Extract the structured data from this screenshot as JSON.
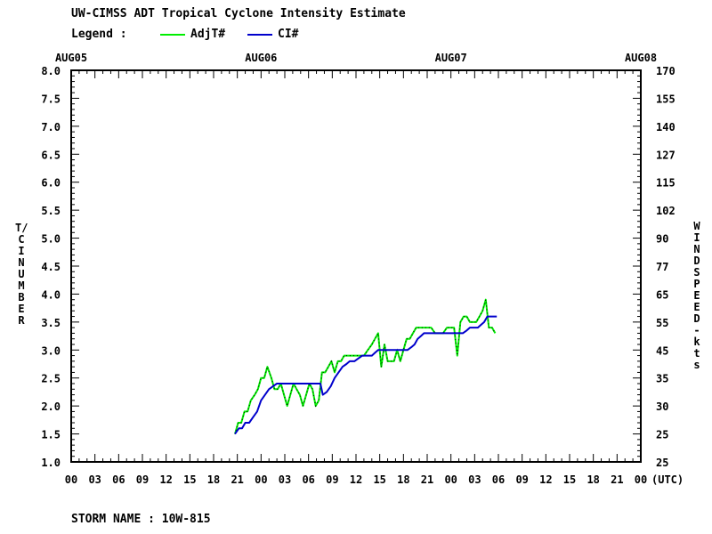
{
  "title": "UW-CIMSS ADT Tropical Cyclone Intensity Estimate",
  "legend": {
    "label": "Legend :",
    "items": [
      {
        "name": "AdjT#",
        "color": "#00ee00"
      },
      {
        "name": "CI#",
        "color": "#0000cc"
      }
    ]
  },
  "storm_label": "STORM NAME : 10W-815",
  "chart_data": {
    "type": "line",
    "xlabel": "(UTC)",
    "ylabel_left": "T/CI NUMBER",
    "ylabel_right": "WIND SPEED-kts",
    "date_labels": [
      "AUG05",
      "AUG06",
      "AUG07",
      "AUG08"
    ],
    "x_tick_labels": [
      "00",
      "03",
      "06",
      "09",
      "12",
      "15",
      "18",
      "21",
      "00",
      "03",
      "06",
      "09",
      "12",
      "15",
      "18",
      "21",
      "00",
      "03",
      "06",
      "09",
      "12",
      "15",
      "18",
      "21",
      "00"
    ],
    "y_left_ticks": [
      "1.0",
      "1.5",
      "2.0",
      "2.5",
      "3.0",
      "3.5",
      "4.0",
      "4.5",
      "5.0",
      "5.5",
      "6.0",
      "6.5",
      "7.0",
      "7.5",
      "8.0"
    ],
    "y_right_ticks": [
      "25",
      "25",
      "30",
      "35",
      "45",
      "55",
      "65",
      "77",
      "90",
      "102",
      "115",
      "127",
      "140",
      "155",
      "170"
    ],
    "xlim_hours": [
      0,
      72
    ],
    "ylim": [
      1.0,
      8.0
    ],
    "grid": false,
    "series": [
      {
        "name": "AdjT#",
        "color": "#00ee00",
        "points": [
          [
            20.7,
            1.5
          ],
          [
            21.1,
            1.7
          ],
          [
            21.5,
            1.7
          ],
          [
            21.9,
            1.9
          ],
          [
            22.3,
            1.9
          ],
          [
            22.7,
            2.1
          ],
          [
            23.2,
            2.2
          ],
          [
            23.6,
            2.3
          ],
          [
            24.0,
            2.5
          ],
          [
            24.4,
            2.5
          ],
          [
            24.8,
            2.7
          ],
          [
            25.3,
            2.5
          ],
          [
            25.7,
            2.3
          ],
          [
            26.1,
            2.3
          ],
          [
            26.5,
            2.4
          ],
          [
            26.9,
            2.2
          ],
          [
            27.3,
            2.0
          ],
          [
            27.7,
            2.2
          ],
          [
            28.1,
            2.4
          ],
          [
            28.5,
            2.3
          ],
          [
            28.9,
            2.2
          ],
          [
            29.3,
            2.0
          ],
          [
            29.7,
            2.2
          ],
          [
            30.1,
            2.4
          ],
          [
            30.5,
            2.3
          ],
          [
            30.9,
            2.0
          ],
          [
            31.3,
            2.1
          ],
          [
            31.7,
            2.6
          ],
          [
            32.1,
            2.6
          ],
          [
            32.5,
            2.7
          ],
          [
            32.9,
            2.8
          ],
          [
            33.3,
            2.6
          ],
          [
            33.7,
            2.8
          ],
          [
            34.1,
            2.8
          ],
          [
            34.5,
            2.9
          ],
          [
            34.9,
            2.9
          ],
          [
            35.5,
            2.9
          ],
          [
            36.0,
            2.9
          ],
          [
            36.5,
            2.9
          ],
          [
            37.0,
            2.9
          ],
          [
            37.5,
            3.0
          ],
          [
            38.0,
            3.1
          ],
          [
            38.4,
            3.2
          ],
          [
            38.8,
            3.3
          ],
          [
            39.2,
            2.7
          ],
          [
            39.6,
            3.1
          ],
          [
            40.0,
            2.8
          ],
          [
            40.4,
            2.8
          ],
          [
            40.8,
            2.8
          ],
          [
            41.2,
            3.0
          ],
          [
            41.6,
            2.8
          ],
          [
            42.0,
            3.0
          ],
          [
            42.4,
            3.2
          ],
          [
            42.8,
            3.2
          ],
          [
            43.2,
            3.3
          ],
          [
            43.6,
            3.4
          ],
          [
            44.0,
            3.4
          ],
          [
            44.5,
            3.4
          ],
          [
            45.0,
            3.4
          ],
          [
            45.5,
            3.4
          ],
          [
            46.0,
            3.3
          ],
          [
            46.5,
            3.3
          ],
          [
            47.0,
            3.3
          ],
          [
            47.5,
            3.4
          ],
          [
            48.0,
            3.4
          ],
          [
            48.4,
            3.4
          ],
          [
            48.8,
            2.9
          ],
          [
            49.2,
            3.5
          ],
          [
            49.6,
            3.6
          ],
          [
            50.0,
            3.6
          ],
          [
            50.4,
            3.5
          ],
          [
            50.8,
            3.5
          ],
          [
            51.2,
            3.5
          ],
          [
            51.6,
            3.6
          ],
          [
            52.0,
            3.7
          ],
          [
            52.4,
            3.9
          ],
          [
            52.8,
            3.4
          ],
          [
            53.2,
            3.4
          ],
          [
            53.6,
            3.3
          ]
        ]
      },
      {
        "name": "CI#",
        "color": "#0000cc",
        "points": [
          [
            20.7,
            1.5
          ],
          [
            21.2,
            1.6
          ],
          [
            21.6,
            1.6
          ],
          [
            22.0,
            1.7
          ],
          [
            22.5,
            1.7
          ],
          [
            23.0,
            1.8
          ],
          [
            23.5,
            1.9
          ],
          [
            24.0,
            2.1
          ],
          [
            24.5,
            2.2
          ],
          [
            25.0,
            2.3
          ],
          [
            25.5,
            2.35
          ],
          [
            26.0,
            2.4
          ],
          [
            27.0,
            2.4
          ],
          [
            28.0,
            2.4
          ],
          [
            29.0,
            2.4
          ],
          [
            30.0,
            2.4
          ],
          [
            31.0,
            2.4
          ],
          [
            31.5,
            2.4
          ],
          [
            31.8,
            2.2
          ],
          [
            32.3,
            2.25
          ],
          [
            32.8,
            2.35
          ],
          [
            33.3,
            2.5
          ],
          [
            33.8,
            2.6
          ],
          [
            34.3,
            2.7
          ],
          [
            34.8,
            2.75
          ],
          [
            35.2,
            2.8
          ],
          [
            35.8,
            2.8
          ],
          [
            36.3,
            2.85
          ],
          [
            36.8,
            2.9
          ],
          [
            37.5,
            2.9
          ],
          [
            38.0,
            2.9
          ],
          [
            38.4,
            2.95
          ],
          [
            38.8,
            3.0
          ],
          [
            39.5,
            3.0
          ],
          [
            40.5,
            3.0
          ],
          [
            41.5,
            3.0
          ],
          [
            42.5,
            3.0
          ],
          [
            43.0,
            3.05
          ],
          [
            43.4,
            3.1
          ],
          [
            43.8,
            3.2
          ],
          [
            44.2,
            3.25
          ],
          [
            44.6,
            3.3
          ],
          [
            45.5,
            3.3
          ],
          [
            46.5,
            3.3
          ],
          [
            47.5,
            3.3
          ],
          [
            48.5,
            3.3
          ],
          [
            49.5,
            3.3
          ],
          [
            50.0,
            3.35
          ],
          [
            50.4,
            3.4
          ],
          [
            51.0,
            3.4
          ],
          [
            51.4,
            3.4
          ],
          [
            51.8,
            3.45
          ],
          [
            52.2,
            3.5
          ],
          [
            52.6,
            3.6
          ],
          [
            53.0,
            3.6
          ],
          [
            53.5,
            3.6
          ],
          [
            53.8,
            3.6
          ]
        ]
      }
    ]
  }
}
